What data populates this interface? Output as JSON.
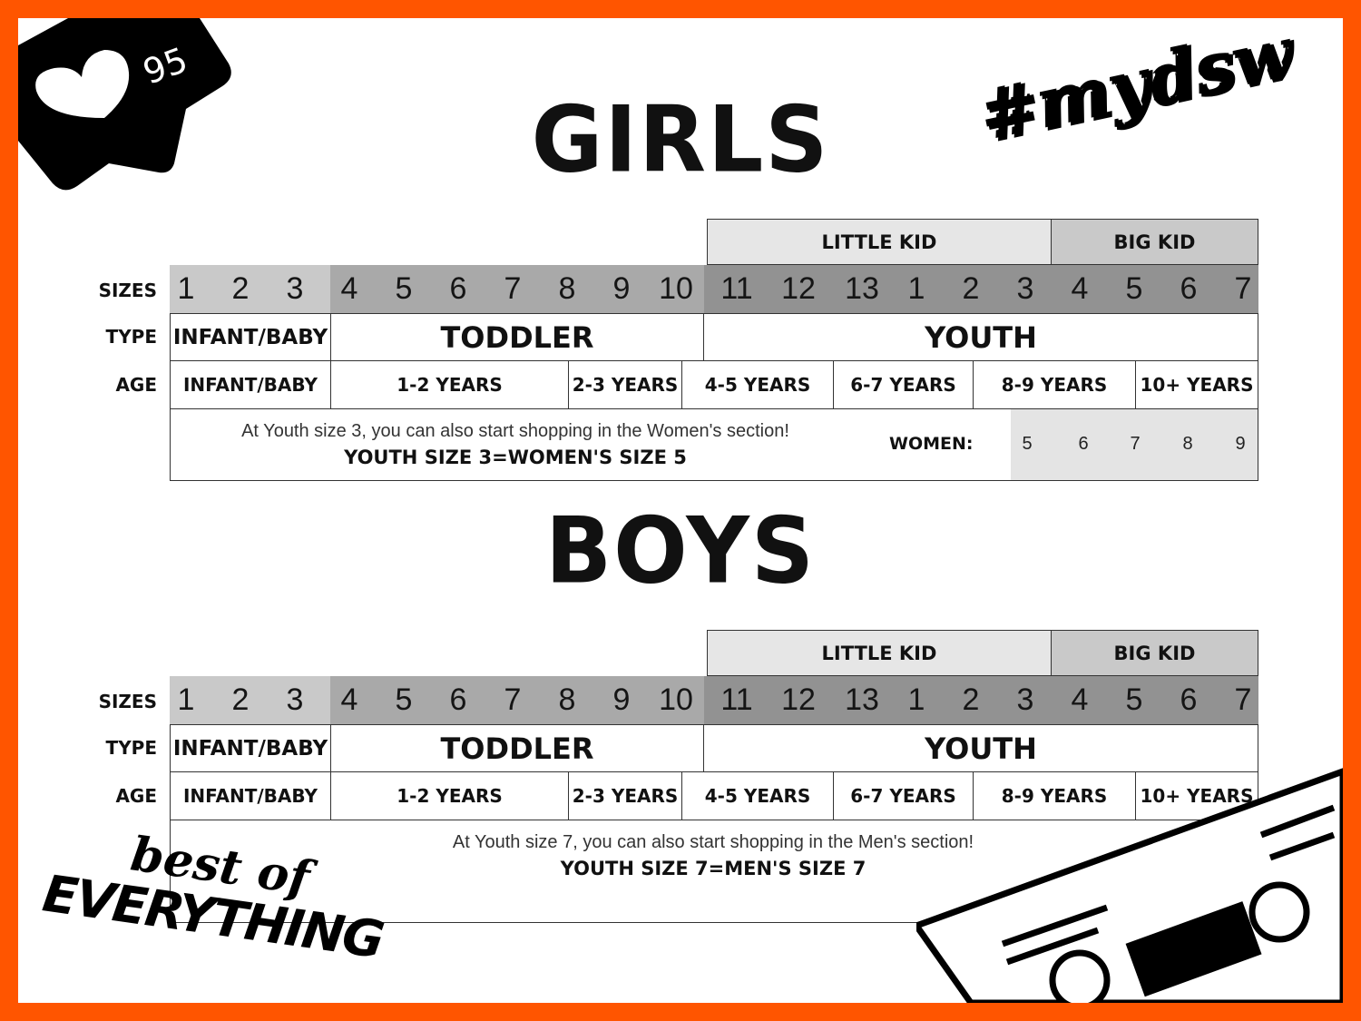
{
  "badge": {
    "likes": "95",
    "icon": "heart-icon"
  },
  "hashtag_logo": "#mydsw",
  "brand_logo": "best of EVERYTHING",
  "colors": {
    "border": "#ff5500",
    "sizes_infant": "#c9c9c9",
    "sizes_toddler": "#a9a9a9",
    "sizes_youth": "#929292",
    "little_kid": "#e6e6e6",
    "big_kid": "#c9c9c9",
    "women_cells": "#e4e4e4"
  },
  "charts": [
    {
      "title": "GIRLS",
      "groups": [
        "LITTLE KID",
        "BIG KID"
      ],
      "row_labels": {
        "sizes": "SIZES",
        "type": "TYPE",
        "age": "AGE"
      },
      "sizes": [
        "1",
        "2",
        "3",
        "4",
        "5",
        "6",
        "7",
        "8",
        "9",
        "10",
        "11",
        "12",
        "13",
        "1",
        "2",
        "3",
        "4",
        "5",
        "6",
        "7"
      ],
      "types": [
        "INFANT/BABY",
        "TODDLER",
        "YOUTH"
      ],
      "ages": [
        "INFANT/BABY",
        "1-2 YEARS",
        "2-3 YEARS",
        "4-5 YEARS",
        "6-7 YEARS",
        "8-9 YEARS",
        "10+ YEARS"
      ],
      "note": "At Youth size 3, you can also start shopping in the Women's section!",
      "note_bold": "YOUTH SIZE 3=WOMEN'S SIZE 5",
      "conversion_label": "WOMEN:",
      "conversion_sizes": [
        "5",
        "6",
        "7",
        "8",
        "9"
      ]
    },
    {
      "title": "BOYS",
      "groups": [
        "LITTLE KID",
        "BIG KID"
      ],
      "row_labels": {
        "sizes": "SIZES",
        "type": "TYPE",
        "age": "AGE"
      },
      "sizes": [
        "1",
        "2",
        "3",
        "4",
        "5",
        "6",
        "7",
        "8",
        "9",
        "10",
        "11",
        "12",
        "13",
        "1",
        "2",
        "3",
        "4",
        "5",
        "6",
        "7"
      ],
      "types": [
        "INFANT/BABY",
        "TODDLER",
        "YOUTH"
      ],
      "ages": [
        "INFANT/BABY",
        "1-2 YEARS",
        "2-3 YEARS",
        "4-5 YEARS",
        "6-7 YEARS",
        "8-9 YEARS",
        "10+ YEARS"
      ],
      "note": "At Youth size 7, you can also start shopping in the Men's section!",
      "note_bold": "YOUTH SIZE 7=MEN'S SIZE 7"
    }
  ]
}
